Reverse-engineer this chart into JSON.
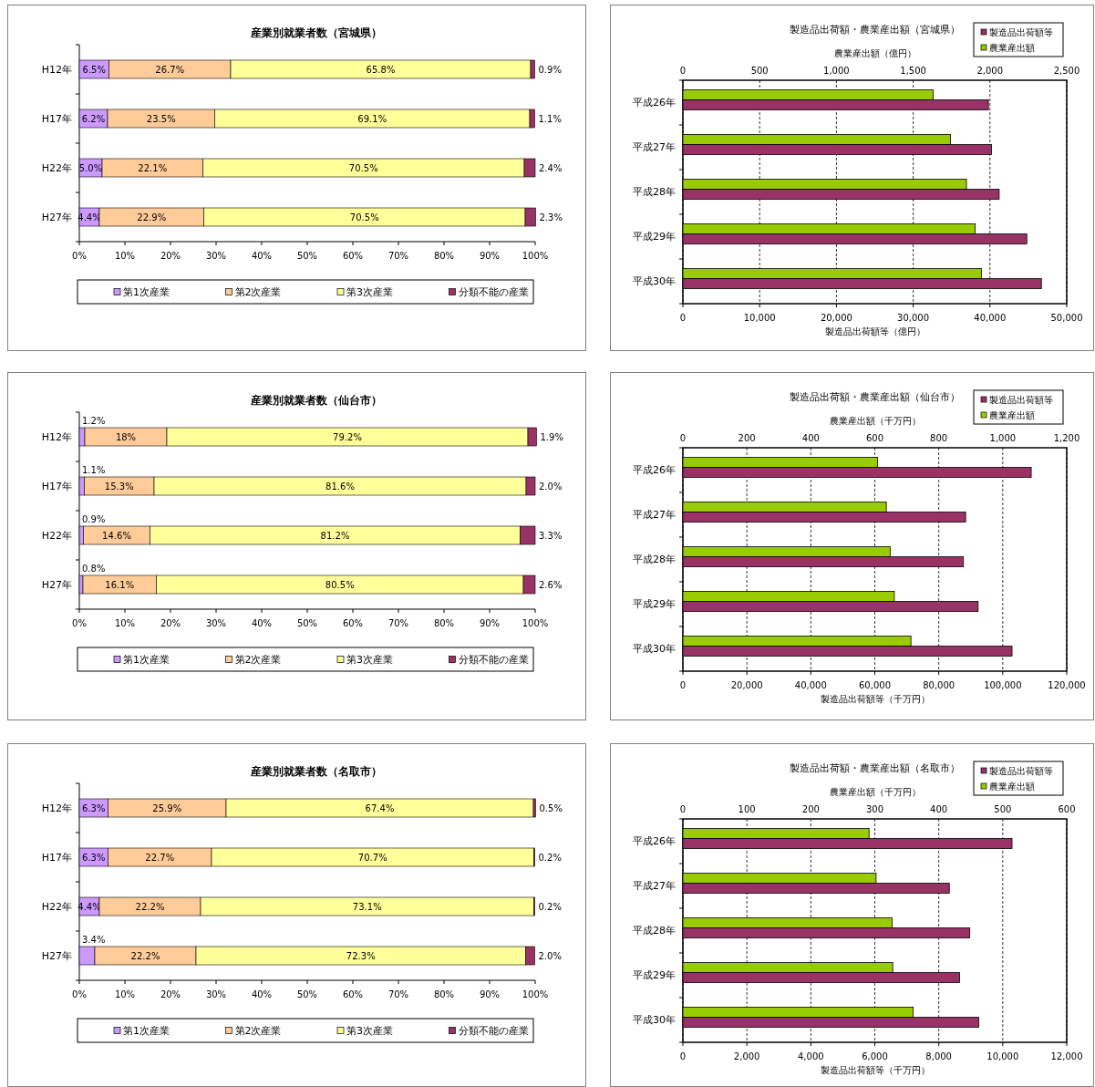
{
  "chart_data": [
    {
      "type": "bar",
      "orientation": "horizontal",
      "stacked": true,
      "title": "産業別就業者数（宮城県）",
      "categories": [
        "H12年",
        "H17年",
        "H22年",
        "H27年"
      ],
      "xlim": [
        0,
        100
      ],
      "xticks": [
        {
          "value": 0,
          "label": "0%"
        },
        {
          "value": 10,
          "label": "10%"
        },
        {
          "value": 20,
          "label": "20%"
        },
        {
          "value": 30,
          "label": "30%"
        },
        {
          "value": 40,
          "label": "40%"
        },
        {
          "value": 50,
          "label": "50%"
        },
        {
          "value": 60,
          "label": "60%"
        },
        {
          "value": 70,
          "label": "70%"
        },
        {
          "value": 80,
          "label": "80%"
        },
        {
          "value": 90,
          "label": "90%"
        },
        {
          "value": 100,
          "label": "100%"
        }
      ],
      "legend": "bottom",
      "series": [
        {
          "name": "第1次産業",
          "color": "#cc99ff",
          "values": [
            6.5,
            6.2,
            5.0,
            4.4
          ],
          "value_labels": [
            "6.5%",
            "6.2%",
            "5.0%",
            "4.4%"
          ]
        },
        {
          "name": "第2次産業",
          "color": "#ffcc99",
          "values": [
            26.7,
            23.5,
            22.1,
            22.9
          ],
          "value_labels": [
            "26.7%",
            "23.5%",
            "22.1%",
            "22.9%"
          ]
        },
        {
          "name": "第3次産業",
          "color": "#ffff99",
          "values": [
            65.8,
            69.1,
            70.5,
            70.5
          ],
          "value_labels": [
            "65.8%",
            "69.1%",
            "70.5%",
            "70.5%"
          ]
        },
        {
          "name": "分類不能の産業",
          "color": "#993366",
          "values": [
            0.9,
            1.1,
            2.4,
            2.3
          ],
          "value_labels": [
            "0.9%",
            "1.1%",
            "2.4%",
            "2.3%"
          ]
        }
      ]
    },
    {
      "type": "bar",
      "orientation": "horizontal",
      "title": "製造品出荷額・農業産出額（宮城県）",
      "categories": [
        "平成26年",
        "平成27年",
        "平成28年",
        "平成29年",
        "平成30年"
      ],
      "xlabel": "製造品出荷額等（億円）",
      "x2label": "農業産出額（億円）",
      "xlim": [
        0,
        50000
      ],
      "xticks": [
        {
          "value": 0,
          "label": "0"
        },
        {
          "value": 10000,
          "label": "10,000"
        },
        {
          "value": 20000,
          "label": "20,000"
        },
        {
          "value": 30000,
          "label": "30,000"
        },
        {
          "value": 40000,
          "label": "40,000"
        },
        {
          "value": 50000,
          "label": "50,000"
        }
      ],
      "x2lim": [
        0,
        2500
      ],
      "x2ticks": [
        0,
        500,
        {
          "value": 1000,
          "label": "1,000"
        },
        {
          "value": 1500,
          "label": "1,500"
        },
        {
          "value": 2000,
          "label": "2,000"
        },
        {
          "value": 2500,
          "label": "2,500"
        }
      ],
      "grid": "x",
      "legend": "top right",
      "series": [
        {
          "name": "農業産出額",
          "color": "#99cc00",
          "axis": "x2",
          "values": [
            1630,
            1743,
            1847,
            1904,
            1944
          ]
        },
        {
          "name": "製造品出荷額等",
          "color": "#993366",
          "values": [
            39800,
            40200,
            41200,
            44800,
            46700
          ]
        }
      ]
    },
    {
      "type": "bar",
      "orientation": "horizontal",
      "stacked": true,
      "title": "産業別就業者数（仙台市）",
      "categories": [
        "H12年",
        "H17年",
        "H22年",
        "H27年"
      ],
      "xlim": [
        0,
        100
      ],
      "xticks": [
        {
          "value": 0,
          "label": "0%"
        },
        {
          "value": 10,
          "label": "10%"
        },
        {
          "value": 20,
          "label": "20%"
        },
        {
          "value": 30,
          "label": "30%"
        },
        {
          "value": 40,
          "label": "40%"
        },
        {
          "value": 50,
          "label": "50%"
        },
        {
          "value": 60,
          "label": "60%"
        },
        {
          "value": 70,
          "label": "70%"
        },
        {
          "value": 80,
          "label": "80%"
        },
        {
          "value": 90,
          "label": "90%"
        },
        {
          "value": 100,
          "label": "100%"
        }
      ],
      "legend": "bottom",
      "series": [
        {
          "name": "第1次産業",
          "color": "#cc99ff",
          "values": [
            1.2,
            1.1,
            0.9,
            0.8
          ],
          "value_labels": [
            "1.2%",
            "1.1%",
            "0.9%",
            "0.8%"
          ]
        },
        {
          "name": "第2次産業",
          "color": "#ffcc99",
          "values": [
            18,
            15.3,
            14.6,
            16.1
          ],
          "value_labels": [
            "18%",
            "15.3%",
            "14.6%",
            "16.1%"
          ]
        },
        {
          "name": "第3次産業",
          "color": "#ffff99",
          "values": [
            79.2,
            81.6,
            81.2,
            80.5
          ],
          "value_labels": [
            "79.2%",
            "81.6%",
            "81.2%",
            "80.5%"
          ]
        },
        {
          "name": "分類不能の産業",
          "color": "#993366",
          "values": [
            1.9,
            2.0,
            3.3,
            2.6
          ],
          "value_labels": [
            "1.9%",
            "2.0%",
            "3.3%",
            "2.6%"
          ]
        }
      ]
    },
    {
      "type": "bar",
      "orientation": "horizontal",
      "title": "製造品出荷額・農業産出額（仙台市）",
      "categories": [
        "平成26年",
        "平成27年",
        "平成28年",
        "平成29年",
        "平成30年"
      ],
      "xlabel": "製造品出荷額等（千万円）",
      "x2label": "農業産出額（千万円）",
      "xlim": [
        0,
        120000
      ],
      "xticks": [
        {
          "value": 0,
          "label": "0"
        },
        {
          "value": 20000,
          "label": "20,000"
        },
        {
          "value": 40000,
          "label": "40,000"
        },
        {
          "value": 60000,
          "label": "60,000"
        },
        {
          "value": 80000,
          "label": "80,000"
        },
        {
          "value": 100000,
          "label": "100,000"
        },
        {
          "value": 120000,
          "label": "120,000"
        }
      ],
      "x2lim": [
        0,
        1200
      ],
      "x2ticks": [
        0,
        200,
        400,
        600,
        800,
        {
          "value": 1000,
          "label": "1,000"
        },
        {
          "value": 1200,
          "label": "1,200"
        }
      ],
      "grid": "x",
      "legend": "top right",
      "series": [
        {
          "name": "農業産出額",
          "color": "#99cc00",
          "axis": "x2",
          "values": [
            609,
            636,
            648,
            661,
            713
          ]
        },
        {
          "name": "製造品出荷額等",
          "color": "#993366",
          "values": [
            108900,
            88400,
            87700,
            92300,
            102900
          ]
        }
      ]
    },
    {
      "type": "bar",
      "orientation": "horizontal",
      "stacked": true,
      "title": "産業別就業者数（名取市）",
      "categories": [
        "H12年",
        "H17年",
        "H22年",
        "H27年"
      ],
      "xlim": [
        0,
        100
      ],
      "xticks": [
        {
          "value": 0,
          "label": "0%"
        },
        {
          "value": 10,
          "label": "10%"
        },
        {
          "value": 20,
          "label": "20%"
        },
        {
          "value": 30,
          "label": "30%"
        },
        {
          "value": 40,
          "label": "40%"
        },
        {
          "value": 50,
          "label": "50%"
        },
        {
          "value": 60,
          "label": "60%"
        },
        {
          "value": 70,
          "label": "70%"
        },
        {
          "value": 80,
          "label": "80%"
        },
        {
          "value": 90,
          "label": "90%"
        },
        {
          "value": 100,
          "label": "100%"
        }
      ],
      "legend": "bottom",
      "series": [
        {
          "name": "第1次産業",
          "color": "#cc99ff",
          "values": [
            6.3,
            6.3,
            4.4,
            3.4
          ],
          "value_labels": [
            "6.3%",
            "6.3%",
            "4.4%",
            "3.4%"
          ]
        },
        {
          "name": "第2次産業",
          "color": "#ffcc99",
          "values": [
            25.9,
            22.7,
            22.2,
            22.2
          ],
          "value_labels": [
            "25.9%",
            "22.7%",
            "22.2%",
            "22.2%"
          ]
        },
        {
          "name": "第3次産業",
          "color": "#ffff99",
          "values": [
            67.4,
            70.7,
            73.1,
            72.3
          ],
          "value_labels": [
            "67.4%",
            "70.7%",
            "73.1%",
            "72.3%"
          ]
        },
        {
          "name": "分類不能の産業",
          "color": "#993366",
          "values": [
            0.5,
            0.2,
            0.2,
            2.0
          ],
          "value_labels": [
            "0.5%",
            "0.2%",
            "0.2%",
            "2.0%"
          ]
        }
      ]
    },
    {
      "type": "bar",
      "orientation": "horizontal",
      "title": "製造品出荷額・農業産出額（名取市）",
      "categories": [
        "平成26年",
        "平成27年",
        "平成28年",
        "平成29年",
        "平成30年"
      ],
      "xlabel": "製造品出荷額等（千万円）",
      "x2label": "農業産出額（千万円）",
      "xlim": [
        0,
        12000
      ],
      "xticks": [
        {
          "value": 0,
          "label": "0"
        },
        {
          "value": 2000,
          "label": "2,000"
        },
        {
          "value": 4000,
          "label": "4,000"
        },
        {
          "value": 6000,
          "label": "6,000"
        },
        {
          "value": 8000,
          "label": "8,000"
        },
        {
          "value": 10000,
          "label": "10,000"
        },
        {
          "value": 12000,
          "label": "12,000"
        }
      ],
      "x2lim": [
        0,
        600
      ],
      "x2ticks": [
        0,
        100,
        200,
        300,
        400,
        500,
        600
      ],
      "grid": "x",
      "legend": "top right",
      "series": [
        {
          "name": "農業産出額",
          "color": "#99cc00",
          "axis": "x2",
          "values": [
            291,
            302,
            327,
            328,
            360
          ]
        },
        {
          "name": "製造品出荷額等",
          "color": "#993366",
          "values": [
            10290,
            8330,
            8970,
            8650,
            9250
          ]
        }
      ]
    }
  ]
}
